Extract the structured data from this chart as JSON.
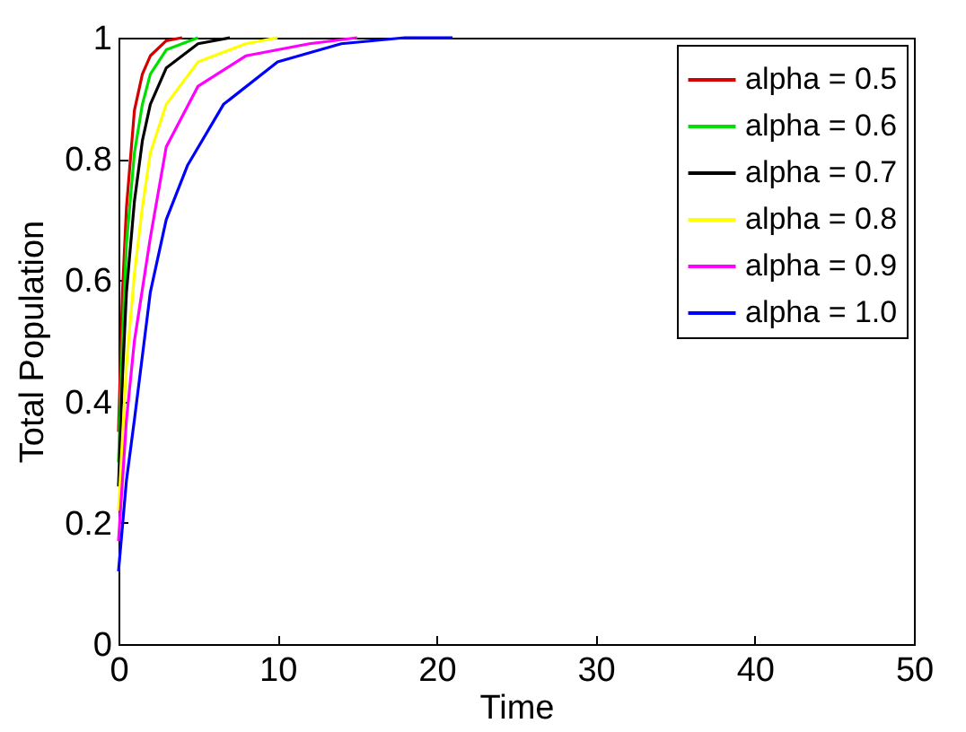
{
  "chart_data": {
    "type": "line",
    "xlabel": "Time",
    "ylabel": "Total Population",
    "xlim": [
      0,
      50
    ],
    "ylim": [
      0,
      1
    ],
    "xticks": [
      0,
      10,
      20,
      30,
      40,
      50
    ],
    "yticks": [
      0,
      0.2,
      0.4,
      0.6,
      0.8,
      1
    ],
    "grid": false,
    "legend": "top right",
    "marker": "none",
    "line_style": "solid",
    "series": [
      {
        "name": "alpha = 0.5",
        "color": "#d40000",
        "x": [
          0,
          0.25,
          0.5,
          1,
          1.5,
          2,
          3,
          4
        ],
        "values": [
          0.35,
          0.58,
          0.72,
          0.88,
          0.94,
          0.97,
          0.995,
          1
        ]
      },
      {
        "name": "alpha = 0.6",
        "color": "#00e000",
        "x": [
          0,
          0.25,
          0.5,
          1,
          1.5,
          2,
          3,
          5
        ],
        "values": [
          0.3,
          0.5,
          0.66,
          0.81,
          0.89,
          0.94,
          0.98,
          1
        ]
      },
      {
        "name": "alpha = 0.7",
        "color": "#000000",
        "x": [
          0,
          0.25,
          0.5,
          1,
          1.5,
          2,
          3,
          5,
          7
        ],
        "values": [
          0.26,
          0.44,
          0.58,
          0.73,
          0.83,
          0.89,
          0.95,
          0.99,
          1
        ]
      },
      {
        "name": "alpha = 0.8",
        "color": "#ffff00",
        "x": [
          0,
          0.5,
          1,
          1.5,
          2,
          3,
          5,
          8,
          10
        ],
        "values": [
          0.22,
          0.46,
          0.61,
          0.72,
          0.81,
          0.89,
          0.96,
          0.99,
          1
        ]
      },
      {
        "name": "alpha = 0.9",
        "color": "#ff00ff",
        "x": [
          0,
          0.5,
          1,
          2,
          3,
          5,
          8,
          12,
          15
        ],
        "values": [
          0.17,
          0.37,
          0.5,
          0.67,
          0.82,
          0.92,
          0.97,
          0.99,
          1
        ]
      },
      {
        "name": "alpha = 1.0",
        "color": "#0000ff",
        "x": [
          0,
          0.5,
          1,
          2,
          3,
          4.35,
          6.6,
          10,
          14,
          18,
          21
        ],
        "values": [
          0.12,
          0.27,
          0.37,
          0.58,
          0.7,
          0.79,
          0.89,
          0.96,
          0.99,
          1,
          1
        ]
      }
    ]
  }
}
